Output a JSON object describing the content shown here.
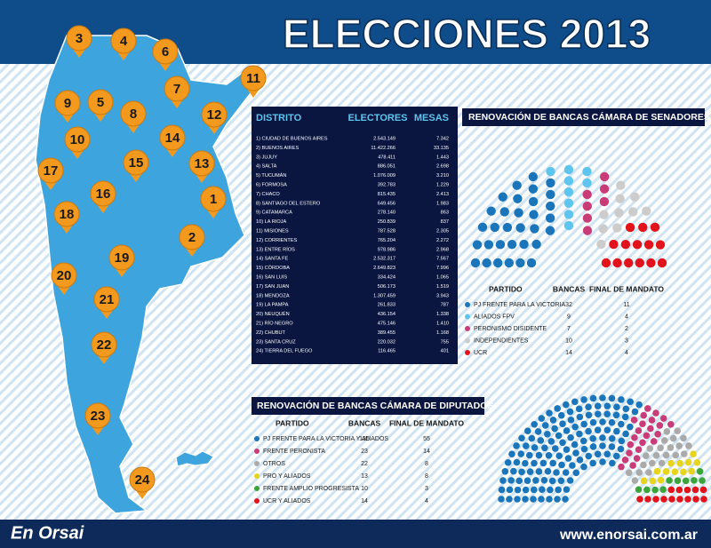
{
  "header": {
    "title": "ELECCIONES 2013"
  },
  "map": {
    "pins": [
      "1",
      "2",
      "3",
      "4",
      "5",
      "6",
      "7",
      "8",
      "9",
      "10",
      "11",
      "12",
      "13",
      "14",
      "15",
      "16",
      "17",
      "18",
      "19",
      "20",
      "21",
      "22",
      "23",
      "24"
    ]
  },
  "districts_table": {
    "columns": [
      "DISTRITO",
      "ELECTORES",
      "MESAS"
    ],
    "rows": [
      [
        "1) CIUDAD DE BUENOS AIRES",
        "2.543.149",
        "7.342"
      ],
      [
        "2) BUENOS AIRES",
        "11.422.266",
        "33.135"
      ],
      [
        "3) JUJUY",
        "478.411",
        "1.443"
      ],
      [
        "4) SALTA",
        "886.051",
        "2.698"
      ],
      [
        "5) TUCUMÁN",
        "1.076.009",
        "3.210"
      ],
      [
        "6) FORMOSA",
        "392.783",
        "1.229"
      ],
      [
        "7) CHACO",
        "815.435",
        "2.413"
      ],
      [
        "8) SANTIAGO DEL ESTERO",
        "649.456",
        "1.983"
      ],
      [
        "9) CATAMARCA",
        "278.140",
        "863"
      ],
      [
        "10) LA RIOJA",
        "250.839",
        "837"
      ],
      [
        "11) MISIONES",
        "787.528",
        "2.305"
      ],
      [
        "12) CORRIENTES",
        "765.204",
        "2.272"
      ],
      [
        "13) ENTRE RÍOS",
        "978.986",
        "2.968"
      ],
      [
        "14) SANTA FE",
        "2.532.317",
        "7.567"
      ],
      [
        "15) CÓRDOBA",
        "2.649.823",
        "7.996"
      ],
      [
        "16) SAN LUIS",
        "334.424",
        "1.065"
      ],
      [
        "17) SAN JUAN",
        "506.173",
        "1.519"
      ],
      [
        "18) MENDOZA",
        "1.307.459",
        "3.943"
      ],
      [
        "19) LA PAMPA",
        "261.833",
        "787"
      ],
      [
        "20) NEUQUÉN",
        "436.154",
        "1.338"
      ],
      [
        "21) RÍO NEGRO",
        "475.146",
        "1.410"
      ],
      [
        "22) CHUBUT",
        "389.455",
        "1.168"
      ],
      [
        "23) SANTA CRUZ",
        "220.032",
        "755"
      ],
      [
        "24) TIERRA DEL FUEGO",
        "116.465",
        "401"
      ]
    ]
  },
  "senate": {
    "title": "RENOVACIÓN DE BANCAS CÁMARA DE SENADORES",
    "columns": [
      "PARTIDO",
      "BANCAS",
      "FINAL DE MANDATO"
    ],
    "parties": [
      {
        "name": "PJ FRENTE PARA LA VICTORIA",
        "color": "#1b75bb",
        "seats": 32,
        "ending": 11
      },
      {
        "name": "ALIADOS FPV",
        "color": "#5ec5ee",
        "seats": 9,
        "ending": 4
      },
      {
        "name": "PERONISMO DISIDENTE",
        "color": "#c93c78",
        "seats": 7,
        "ending": 2
      },
      {
        "name": "INDEPENDIENTES",
        "color": "#cccccc",
        "seats": 10,
        "ending": 3
      },
      {
        "name": "UCR",
        "color": "#e3131b",
        "seats": 14,
        "ending": 4
      }
    ]
  },
  "deputies": {
    "title": "RENOVACIÓN DE BANCAS CÁMARA DE DIPUTADOS",
    "columns": [
      "PARTIDO",
      "BANCAS",
      "FINAL DE MANDATO"
    ],
    "parties": [
      {
        "name": "PJ FRENTE PARA LA VICTORIA Y ALIADOS",
        "color": "#1b75bb",
        "seats": 135,
        "ending": 55
      },
      {
        "name": "FRENTE PERONISTA",
        "color": "#c93c78",
        "seats": 23,
        "ending": 14
      },
      {
        "name": "OTROS",
        "color": "#aaaaaa",
        "seats": 22,
        "ending": 8
      },
      {
        "name": "PRO Y ALIADOS",
        "color": "#e8d41a",
        "seats": 13,
        "ending": 8
      },
      {
        "name": "FRENTE AMPLIO PROGRESISTA",
        "color": "#3aa63a",
        "seats": 10,
        "ending": 3
      },
      {
        "name": "UCR  Y ALIADOS",
        "color": "#e3131b",
        "seats": 14,
        "ending": 4
      }
    ]
  },
  "footer": {
    "logo": "En Orsai",
    "url": "www.enorsai.com.ar"
  }
}
